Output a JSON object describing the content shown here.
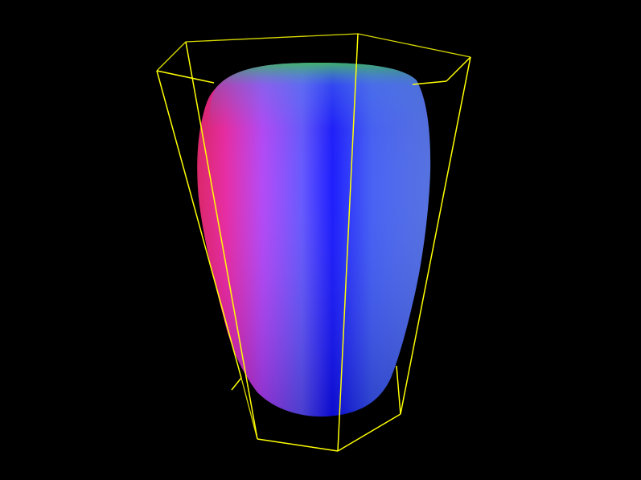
{
  "viewer": {
    "background_color": "#000000",
    "bounding_box_color": "#ffff00",
    "marker_color": "#333333",
    "surface_colors": {
      "left": "#ff1f6a",
      "center": "#0a0aff",
      "top": "#35c25a",
      "mid": "#9040ff"
    }
  }
}
